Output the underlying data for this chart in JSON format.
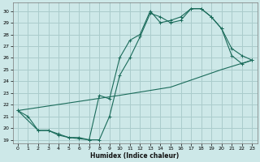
{
  "xlabel": "Humidex (Indice chaleur)",
  "bg_color": "#cde8e8",
  "grid_color": "#aacccc",
  "line_color": "#1a6b5a",
  "xlim": [
    -0.5,
    23.5
  ],
  "ylim": [
    18.7,
    30.7
  ],
  "yticks": [
    19,
    20,
    21,
    22,
    23,
    24,
    25,
    26,
    27,
    28,
    29,
    30
  ],
  "xticks": [
    0,
    1,
    2,
    3,
    4,
    5,
    6,
    7,
    8,
    9,
    10,
    11,
    12,
    13,
    14,
    15,
    16,
    17,
    18,
    19,
    20,
    21,
    22,
    23
  ],
  "curve1_x": [
    0,
    1,
    2,
    3,
    4,
    5,
    6,
    7,
    8,
    9,
    10,
    11,
    12,
    13,
    14,
    15,
    16,
    17,
    18,
    19,
    20,
    21,
    22,
    23
  ],
  "curve1_y": [
    21.5,
    21.0,
    19.8,
    19.8,
    19.5,
    19.2,
    19.2,
    19.0,
    22.8,
    22.5,
    26.0,
    27.5,
    28.0,
    30.0,
    29.0,
    29.2,
    29.5,
    30.2,
    30.2,
    29.5,
    28.5,
    26.8,
    26.2,
    25.8
  ],
  "curve2_x": [
    0,
    2,
    3,
    4,
    5,
    6,
    7,
    8,
    9,
    10,
    11,
    12,
    13,
    14,
    15,
    16,
    17,
    18,
    19,
    20,
    21,
    22,
    23
  ],
  "curve2_y": [
    21.5,
    19.8,
    19.8,
    19.4,
    19.2,
    19.1,
    19.0,
    19.0,
    21.0,
    24.5,
    26.0,
    27.8,
    29.8,
    29.5,
    29.0,
    29.2,
    30.2,
    30.2,
    29.5,
    28.5,
    26.2,
    25.5,
    25.8
  ],
  "curve3_x": [
    0,
    10,
    15,
    20,
    23
  ],
  "curve3_y": [
    21.5,
    22.8,
    23.5,
    25.0,
    25.8
  ]
}
